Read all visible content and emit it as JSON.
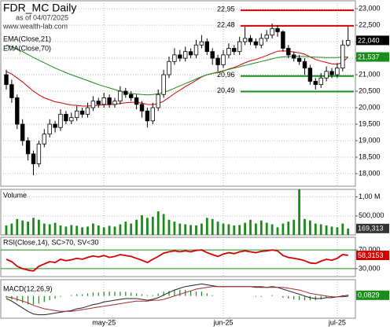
{
  "chart_data": [
    {
      "type": "candlestick",
      "title": "FDR_MC Daily",
      "subtitle": "as of 04/07/2025",
      "source": "www.wealth-lab.com",
      "open": [
        21000,
        20700,
        20300,
        19500,
        19000,
        18600,
        18300,
        18900,
        19200,
        19500,
        19400,
        19800,
        19600,
        19700,
        19900,
        19800,
        20000,
        20200,
        20100,
        20300,
        20100,
        20200,
        20500,
        20400,
        20300,
        20100,
        19900,
        19600,
        20000,
        20400,
        21000,
        21400,
        21600,
        21500,
        21700,
        21600,
        21900,
        22000,
        21700,
        21500,
        21300,
        21600,
        21800,
        21700,
        22000,
        22100,
        22000,
        21900,
        22100,
        22200,
        22400,
        22300,
        21800,
        21600,
        21500,
        21400,
        21200,
        20800,
        20700,
        20900,
        21100,
        21000,
        21200,
        21900
      ],
      "high": [
        21150,
        20850,
        20400,
        19650,
        19100,
        18700,
        19000,
        19350,
        19650,
        19600,
        19950,
        19900,
        19850,
        20050,
        20000,
        20150,
        20350,
        20300,
        20450,
        20400,
        20300,
        20650,
        20600,
        20500,
        20400,
        20200,
        20000,
        20150,
        20550,
        21150,
        21550,
        21800,
        21750,
        21850,
        21800,
        22050,
        22200,
        22100,
        21800,
        21600,
        21750,
        21950,
        21900,
        22150,
        22450,
        22200,
        22100,
        22250,
        22350,
        22550,
        22500,
        22350,
        21900,
        21700,
        21600,
        21500,
        21300,
        20900,
        21050,
        21250,
        21200,
        21350,
        22050,
        22450
      ],
      "low": [
        20550,
        20150,
        19350,
        18850,
        18400,
        17950,
        18200,
        18800,
        19100,
        19250,
        19300,
        19500,
        19500,
        19600,
        19700,
        19700,
        19900,
        20000,
        20000,
        20000,
        20000,
        20100,
        20300,
        20200,
        19950,
        19700,
        19400,
        19500,
        19900,
        20300,
        20900,
        21300,
        21400,
        21400,
        21500,
        21500,
        21800,
        21600,
        21300,
        21100,
        21200,
        21500,
        21600,
        21600,
        21900,
        21900,
        21800,
        21800,
        22000,
        22100,
        22150,
        21700,
        21500,
        21400,
        21300,
        21000,
        20700,
        20550,
        20600,
        20800,
        20900,
        20900,
        21100,
        21850
      ],
      "close": [
        20700,
        20300,
        19500,
        19000,
        18600,
        18300,
        18900,
        19200,
        19500,
        19400,
        19800,
        19600,
        19700,
        19900,
        19800,
        20000,
        20200,
        20100,
        20300,
        20100,
        20200,
        20500,
        20400,
        20300,
        20100,
        19900,
        19600,
        20000,
        20400,
        21000,
        21400,
        21600,
        21500,
        21700,
        21600,
        21900,
        22000,
        21700,
        21500,
        21300,
        21600,
        21800,
        21700,
        22000,
        22100,
        22000,
        21900,
        22100,
        22200,
        22400,
        22300,
        21800,
        21600,
        21500,
        21400,
        21200,
        20800,
        20700,
        20900,
        21100,
        21000,
        21200,
        21900,
        22040
      ],
      "last_label": "22,040",
      "series": [
        {
          "name": "EMA(Close,21)",
          "color": "#d40000",
          "values": [
            21100,
            21020,
            20900,
            20780,
            20640,
            20500,
            20390,
            20300,
            20240,
            20180,
            20150,
            20110,
            20080,
            20070,
            20050,
            20050,
            20060,
            20070,
            20090,
            20090,
            20100,
            20130,
            20150,
            20160,
            20160,
            20140,
            20100,
            20090,
            20120,
            20200,
            20310,
            20430,
            20530,
            20640,
            20730,
            20830,
            20930,
            21000,
            21040,
            21060,
            21110,
            21170,
            21220,
            21290,
            21360,
            21420,
            21460,
            21520,
            21580,
            21650,
            21710,
            21720,
            21710,
            21690,
            21660,
            21620,
            21540,
            21460,
            21410,
            21370,
            21330,
            21320,
            21370,
            21540
          ]
        },
        {
          "name": "EMA(Close,70)",
          "color": "#1a8c1a",
          "values": [
            21900,
            21850,
            21780,
            21700,
            21610,
            21520,
            21440,
            21360,
            21280,
            21200,
            21130,
            21060,
            21000,
            20940,
            20880,
            20820,
            20760,
            20700,
            20650,
            20600,
            20550,
            20500,
            20460,
            20430,
            20410,
            20400,
            20390,
            20400,
            20420,
            20460,
            20520,
            20590,
            20660,
            20730,
            20800,
            20870,
            20940,
            21000,
            21040,
            21080,
            21120,
            21160,
            21200,
            21240,
            21280,
            21320,
            21360,
            21400,
            21440,
            21480,
            21520,
            21540,
            21550,
            21555,
            21555,
            21550,
            21540,
            21530,
            21525,
            21520,
            21520,
            21522,
            21530,
            21537
          ],
          "last_label": "21,537"
        }
      ],
      "levels": [
        {
          "value": 22950,
          "label": "22,95",
          "color": "#d40000"
        },
        {
          "value": 22480,
          "label": "22,48",
          "color": "#d40000"
        },
        {
          "value": 20960,
          "label": "20,96",
          "color": "#1a8c1a"
        },
        {
          "value": 20490,
          "label": "20,49",
          "color": "#1a8c1a"
        }
      ],
      "ylim": [
        17620,
        23240
      ],
      "yticks": [
        {
          "value": 23000,
          "label": "23,000"
        },
        {
          "value": 22500,
          "label": "22,500"
        },
        {
          "value": 22000,
          "label": "22,000"
        },
        {
          "value": 21500,
          "label": "21,500"
        },
        {
          "value": 21000,
          "label": "21,000"
        },
        {
          "value": 20500,
          "label": "20,500"
        },
        {
          "value": 20000,
          "label": "20,000"
        },
        {
          "value": 19500,
          "label": "19,500"
        },
        {
          "value": 19000,
          "label": "19,000"
        },
        {
          "value": 18500,
          "label": "18,500"
        },
        {
          "value": 18000,
          "label": "18,000"
        }
      ],
      "grid": true
    },
    {
      "type": "bar",
      "title": "Volume",
      "color": "#1a8c1a",
      "values": [
        250000,
        300000,
        420000,
        380000,
        350000,
        450000,
        400000,
        300000,
        280000,
        320000,
        250000,
        220000,
        260000,
        240000,
        200000,
        220000,
        300000,
        250000,
        200000,
        240000,
        220000,
        280000,
        350000,
        300000,
        400000,
        520000,
        450000,
        480000,
        620000,
        550000,
        400000,
        350000,
        300000,
        280000,
        260000,
        250000,
        300000,
        450000,
        420000,
        350000,
        300000,
        280000,
        250000,
        260000,
        320000,
        400000,
        300000,
        380000,
        320000,
        280000,
        200000,
        300000,
        350000,
        400000,
        1200000,
        420000,
        380000,
        300000,
        280000,
        250000,
        220000,
        200000,
        300000,
        169313
      ],
      "last_label": "169,313",
      "ylim": [
        0,
        1200000
      ],
      "yticks": [
        {
          "value": 1000000,
          "label": "1,00 M"
        },
        {
          "value": 500000,
          "label": "500,000"
        }
      ],
      "grid": true
    },
    {
      "type": "line",
      "title": "RSI(Close,14), SC>70, SV<30",
      "band_color": "#1a8c1a",
      "series": [
        {
          "name": "RSI",
          "color": "#d40000",
          "values": [
            50,
            45,
            35,
            30,
            27,
            25,
            35,
            40,
            45,
            43,
            50,
            47,
            49,
            52,
            50,
            54,
            57,
            55,
            58,
            54,
            56,
            60,
            58,
            56,
            52,
            48,
            43,
            50,
            56,
            63,
            66,
            68,
            66,
            68,
            66,
            69,
            70,
            64,
            60,
            56,
            61,
            64,
            62,
            66,
            68,
            66,
            64,
            67,
            68,
            70,
            68,
            58,
            54,
            52,
            50,
            47,
            42,
            41,
            46,
            50,
            48,
            52,
            60,
            58.3153
          ],
          "last_label": "58,3153"
        }
      ],
      "ylim": [
        13,
        97
      ],
      "yticks": [
        {
          "value": 70,
          "label": "70,000"
        },
        {
          "value": 30,
          "label": "30,000"
        }
      ],
      "grid": true
    },
    {
      "type": "macd",
      "title": "MACD(12,26,9)",
      "categories": [
        null,
        null,
        null,
        null,
        null,
        null,
        null,
        null,
        null,
        null,
        null,
        null,
        null,
        null,
        null,
        null,
        null,
        null,
        "may-25",
        null,
        null,
        null,
        null,
        null,
        null,
        null,
        null,
        null,
        null,
        null,
        null,
        null,
        null,
        null,
        null,
        null,
        null,
        null,
        null,
        null,
        "jun-25",
        null,
        null,
        null,
        null,
        null,
        null,
        null,
        null,
        null,
        null,
        null,
        null,
        null,
        null,
        null,
        null,
        null,
        null,
        null,
        null,
        "jul-25",
        null,
        null
      ],
      "series": [
        {
          "name": "MACD",
          "color": "#222222",
          "values": [
            -0.3,
            -0.6,
            -1.0,
            -1.4,
            -1.8,
            -2.1,
            -2.2,
            -2.2,
            -2.1,
            -2.0,
            -1.9,
            -1.8,
            -1.7,
            -1.5,
            -1.4,
            -1.2,
            -1.0,
            -0.9,
            -0.7,
            -0.6,
            -0.5,
            -0.4,
            -0.3,
            -0.3,
            -0.3,
            -0.4,
            -0.5,
            -0.4,
            -0.2,
            0.1,
            0.4,
            0.7,
            0.9,
            1.1,
            1.2,
            1.3,
            1.4,
            1.3,
            1.2,
            1.1,
            1.1,
            1.1,
            1.1,
            1.1,
            1.1,
            1.1,
            1.0,
            1.0,
            1.0,
            1.1,
            1.0,
            0.8,
            0.6,
            0.4,
            0.2,
            0.0,
            -0.2,
            -0.3,
            -0.3,
            -0.2,
            -0.2,
            -0.1,
            0.0,
            0.0829
          ],
          "last_label": "0,0829"
        },
        {
          "name": "Signal",
          "color": "#a52a2a",
          "values": [
            -0.1,
            -0.2,
            -0.4,
            -0.6,
            -0.8,
            -1.1,
            -1.3,
            -1.5,
            -1.6,
            -1.7,
            -1.8,
            -1.8,
            -1.8,
            -1.7,
            -1.6,
            -1.5,
            -1.4,
            -1.3,
            -1.2,
            -1.1,
            -1.0,
            -0.9,
            -0.8,
            -0.7,
            -0.6,
            -0.6,
            -0.6,
            -0.5,
            -0.5,
            -0.4,
            -0.2,
            0.0,
            0.2,
            0.4,
            0.6,
            0.8,
            0.9,
            1.0,
            1.1,
            1.1,
            1.1,
            1.1,
            1.1,
            1.1,
            1.1,
            1.1,
            1.1,
            1.1,
            1.0,
            1.0,
            1.0,
            1.0,
            0.9,
            0.8,
            0.7,
            0.5,
            0.3,
            0.2,
            0.1,
            0.0,
            -0.1,
            -0.1,
            -0.1,
            -0.05
          ]
        }
      ],
      "histogram": {
        "color": "#1a8c1a",
        "values": [
          -0.2,
          -0.4,
          -0.6,
          -0.8,
          -1.0,
          -1.0,
          -0.9,
          -0.7,
          -0.5,
          -0.3,
          -0.1,
          0.0,
          0.1,
          0.2,
          0.2,
          0.3,
          0.4,
          0.4,
          0.5,
          0.5,
          0.5,
          0.5,
          0.5,
          0.4,
          0.3,
          0.2,
          0.1,
          0.1,
          0.3,
          0.5,
          0.6,
          0.7,
          0.7,
          0.7,
          0.6,
          0.5,
          0.5,
          0.3,
          0.1,
          0.0,
          0.0,
          0.0,
          0.0,
          0.0,
          0.0,
          0.0,
          -0.1,
          -0.1,
          0.0,
          0.1,
          0.0,
          -0.2,
          -0.3,
          -0.4,
          -0.5,
          -0.5,
          -0.5,
          -0.5,
          -0.4,
          -0.2,
          -0.1,
          0.0,
          0.1,
          0.1329
        ]
      },
      "ylim": [
        -2.6,
        1.9
      ],
      "grid": true
    }
  ]
}
